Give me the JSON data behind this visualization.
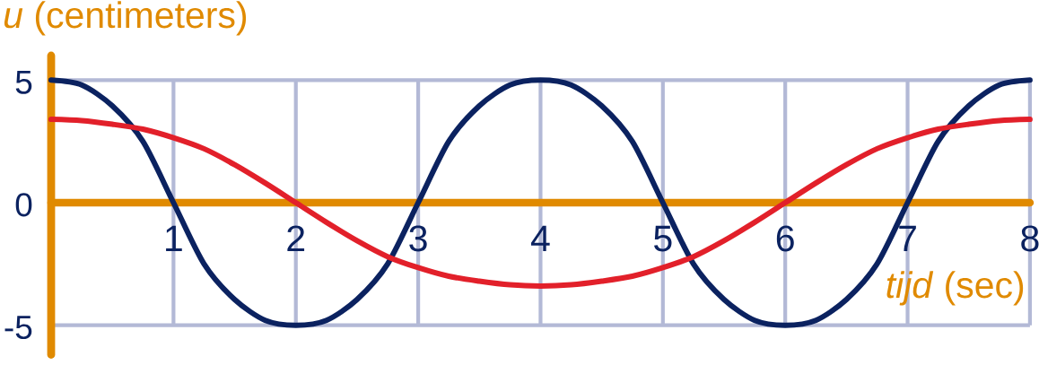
{
  "chart_data": {
    "type": "line",
    "xlabel": "*tijd* (sec)",
    "ylabel": "*u* (centimeters)",
    "x": [
      0,
      0.25,
      0.5,
      0.75,
      1,
      1.25,
      1.5,
      1.75,
      2,
      2.25,
      2.5,
      2.75,
      3,
      3.25,
      3.5,
      3.75,
      4,
      4.25,
      4.5,
      4.75,
      5,
      5.25,
      5.5,
      5.75,
      6,
      6.25,
      6.5,
      6.75,
      7,
      7.25,
      7.5,
      7.75,
      8
    ],
    "series": [
      {
        "color": "#0b2260",
        "values": [
          5,
          4.8,
          3.95,
          2.5,
          0,
          -2.5,
          -3.95,
          -4.8,
          -5,
          -4.8,
          -3.95,
          -2.5,
          0,
          2.5,
          3.95,
          4.8,
          5,
          4.8,
          3.95,
          2.5,
          0,
          -2.5,
          -3.95,
          -4.8,
          -5,
          -4.8,
          -3.95,
          -2.5,
          0,
          2.5,
          3.95,
          4.8,
          5
        ]
      },
      {
        "color": "#e2202a",
        "values": [
          3.4,
          3.35,
          3.2,
          3.0,
          2.65,
          2.2,
          1.55,
          0.8,
          0,
          -0.8,
          -1.55,
          -2.2,
          -2.65,
          -3.0,
          -3.2,
          -3.35,
          -3.4,
          -3.35,
          -3.2,
          -3.0,
          -2.65,
          -2.2,
          -1.55,
          -0.8,
          0,
          0.8,
          1.55,
          2.2,
          2.65,
          3.0,
          3.2,
          3.35,
          3.4
        ]
      }
    ],
    "xlim": [
      0,
      8
    ],
    "ylim": [
      -6.2,
      6.0
    ],
    "xticks": [
      1,
      2,
      3,
      4,
      5,
      6,
      7,
      8
    ],
    "yticks": [
      -5,
      0,
      5
    ],
    "grid": true
  }
}
